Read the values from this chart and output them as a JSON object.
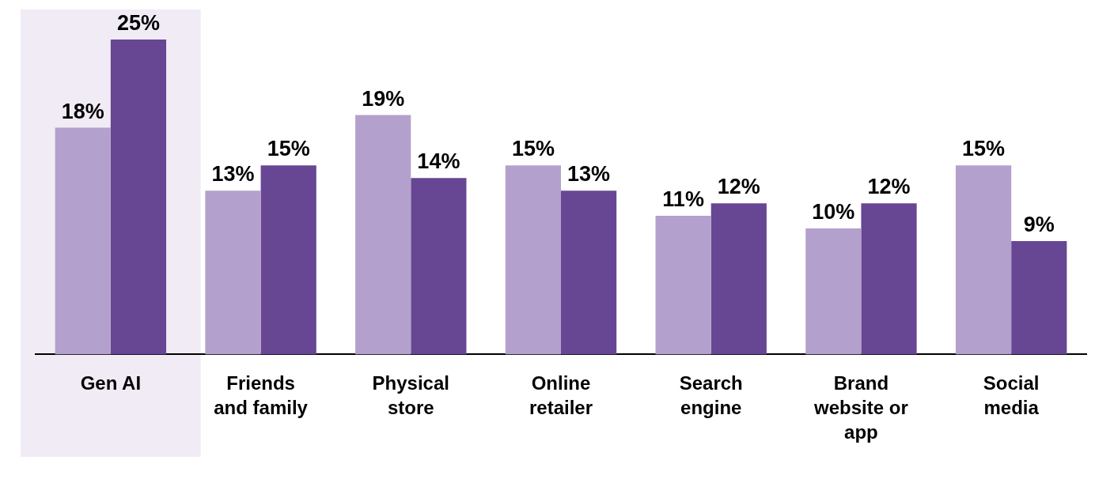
{
  "chart_data": {
    "type": "bar",
    "categories": [
      "Gen AI",
      "Friends and family",
      "Physical store",
      "Online retailer",
      "Search engine",
      "Brand website or app",
      "Social media"
    ],
    "series": [
      {
        "color": "#b3a0cc",
        "values": [
          18,
          13,
          19,
          15,
          11,
          10,
          15
        ],
        "value_labels": [
          "18%",
          "13%",
          "19%",
          "15%",
          "11%",
          "10%",
          "15%"
        ]
      },
      {
        "color": "#674694",
        "values": [
          25,
          15,
          14,
          13,
          12,
          12,
          9
        ],
        "value_labels": [
          "25%",
          "15%",
          "14%",
          "13%",
          "12%",
          "12%",
          "9%"
        ]
      }
    ],
    "bands": [
      {
        "axis": "x",
        "from": "Gen AI",
        "to": "Gen AI",
        "color": "#f1ebf6"
      }
    ],
    "grid": false,
    "legend": false
  }
}
